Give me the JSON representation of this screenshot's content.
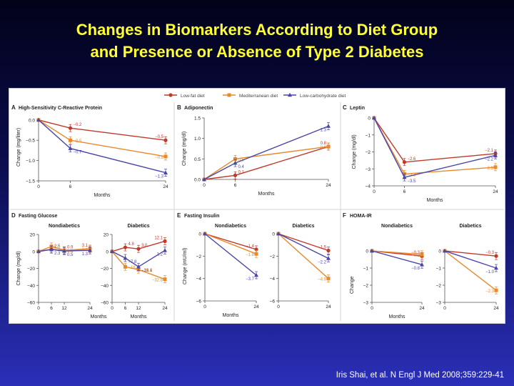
{
  "slide": {
    "title_line1": "Changes in Biomarkers According to Diet Group",
    "title_line2": "and Presence or Absence of Type 2 Diabetes",
    "citation": "Iris Shai,  et al. N Engl J Med 2008;359:229-41"
  },
  "colors": {
    "low_fat": "#c0392b",
    "mediterranean": "#e8892a",
    "low_carb": "#4a46a8"
  },
  "legend": [
    "Low-fat diet",
    "Mediterranean diet",
    "Low-carbohydrate diet"
  ],
  "chart_data": [
    {
      "panel": "A",
      "type": "line",
      "title": "High-Sensitivity C-Reactive Protein",
      "xlabel": "Months",
      "ylabel": "Change (mg/liter)",
      "x": [
        0,
        6,
        24
      ],
      "xticks": [
        0,
        6,
        24
      ],
      "xlim": [
        0,
        24
      ],
      "yticks": [
        0.0,
        -0.5,
        -1.0,
        -1.5
      ],
      "ytick_labels": [
        "0.0",
        "−0.5",
        "−1.0",
        "−1.5"
      ],
      "ylim": [
        -1.5,
        0.05
      ],
      "series": [
        {
          "name": "Low-fat diet",
          "values": [
            0,
            -0.2,
            -0.5
          ],
          "labels": [
            "",
            "−0.2",
            "−0.5"
          ]
        },
        {
          "name": "Mediterranean diet",
          "values": [
            0,
            -0.5,
            -0.9
          ],
          "labels": [
            "",
            "−0.5",
            "−0.9"
          ]
        },
        {
          "name": "Low-carbohydrate diet",
          "values": [
            0,
            -0.7,
            -1.3
          ],
          "labels": [
            "",
            "−0.7",
            "−1.3"
          ]
        }
      ]
    },
    {
      "panel": "B",
      "type": "line",
      "title": "Adiponectin",
      "xlabel": "Months",
      "ylabel": "Change (mg/dl)",
      "x": [
        0,
        6,
        24
      ],
      "xticks": [
        0,
        6,
        24
      ],
      "xlim": [
        0,
        24
      ],
      "yticks": [
        0.0,
        0.5,
        1.0,
        1.5
      ],
      "ytick_labels": [
        "0.0",
        "0.5",
        "1.0",
        "1.5"
      ],
      "ylim": [
        0,
        1.5
      ],
      "series": [
        {
          "name": "Low-fat diet",
          "values": [
            0,
            0.1,
            0.8
          ],
          "labels": [
            "",
            "0.1",
            "0.8"
          ]
        },
        {
          "name": "Mediterranean diet",
          "values": [
            0,
            0.5,
            0.8
          ],
          "labels": [
            "",
            "0.5",
            "0.8"
          ]
        },
        {
          "name": "Low-carbohydrate diet",
          "values": [
            0,
            0.4,
            1.3
          ],
          "labels": [
            "",
            "0.4",
            "1.3"
          ]
        }
      ]
    },
    {
      "panel": "C",
      "type": "line",
      "title": "Leptin",
      "xlabel": "Months",
      "ylabel": "Change (mg/dl)",
      "x": [
        0,
        6,
        24
      ],
      "xticks": [
        0,
        6,
        24
      ],
      "xlim": [
        0,
        24
      ],
      "yticks": [
        0,
        -1,
        -2,
        -3,
        -4
      ],
      "ytick_labels": [
        "0",
        "−1",
        "−2",
        "−3",
        "−4"
      ],
      "ylim": [
        -4,
        0
      ],
      "series": [
        {
          "name": "Low-fat diet",
          "values": [
            0,
            -2.6,
            -2.1
          ],
          "labels": [
            "",
            "−2.6",
            "−2.1"
          ]
        },
        {
          "name": "Mediterranean diet",
          "values": [
            0,
            -3.3,
            -2.9
          ],
          "labels": [
            "",
            "−3.3",
            "−2.9"
          ]
        },
        {
          "name": "Low-carbohydrate diet",
          "values": [
            0,
            -3.5,
            -2.2
          ],
          "labels": [
            "",
            "−3.5",
            "−2.2"
          ]
        }
      ]
    },
    {
      "panel": "D",
      "type": "line",
      "title": "Fasting Glucose",
      "subtitle": "Nondiabetics",
      "xlabel": "Months",
      "ylabel": "Change (mg/dl)",
      "x": [
        0,
        6,
        12,
        24
      ],
      "xticks": [
        0,
        6,
        12,
        24
      ],
      "xlim": [
        0,
        24
      ],
      "yticks": [
        20,
        0,
        -20,
        -40,
        -60
      ],
      "ytick_labels": [
        "20",
        "0",
        "−20",
        "−40",
        "−60"
      ],
      "ylim": [
        -60,
        20
      ],
      "series": [
        {
          "name": "Low-fat diet",
          "values": [
            0,
            2.5,
            0.9,
            3.1
          ],
          "labels": [
            "",
            "2.5",
            "0.9",
            "3.1"
          ]
        },
        {
          "name": "Mediterranean diet",
          "values": [
            0,
            5.8,
            1.4,
            3.1
          ],
          "labels": [
            "",
            "5.8",
            "1.4",
            "3.1"
          ]
        },
        {
          "name": "Low-carbohydrate diet",
          "values": [
            0,
            2.3,
            0.5,
            1.3
          ],
          "labels": [
            "",
            "2.3",
            "0.5",
            "1.3"
          ]
        }
      ]
    },
    {
      "panel": "D2",
      "type": "line",
      "title": "",
      "subtitle": "Diabetics",
      "xlabel": "Months",
      "ylabel": "",
      "x": [
        0,
        6,
        12,
        24
      ],
      "xticks": [
        0,
        6,
        12,
        24
      ],
      "xlim": [
        0,
        24
      ],
      "yticks": [
        20,
        0,
        -20,
        -40,
        -60
      ],
      "ytick_labels": [
        "20",
        "0",
        "−20",
        "−40",
        "−60"
      ],
      "ylim": [
        -60,
        20
      ],
      "series": [
        {
          "name": "Low-fat diet",
          "values": [
            0,
            4.8,
            3.0,
            12.1
          ],
          "labels": [
            "",
            "4.8",
            "3.0",
            "12.1"
          ]
        },
        {
          "name": "Mediterranean diet",
          "values": [
            0,
            -18.1,
            -21.4,
            -32.8
          ],
          "labels": [
            "",
            "−18.1",
            "−21.4",
            "−32.8"
          ]
        },
        {
          "name": "Low-carbohydrate diet",
          "values": [
            0,
            -7.8,
            -18.1,
            1.2
          ],
          "labels": [
            "",
            "−7.8",
            "−18.1",
            "1.2"
          ]
        }
      ]
    },
    {
      "panel": "E",
      "type": "line",
      "title": "Fasting Insulin",
      "subtitle": "Nondiabetics",
      "xlabel": "Months",
      "ylabel": "Change (mU/ml)",
      "x": [
        0,
        24
      ],
      "xticks": [
        0,
        24
      ],
      "xlim": [
        0,
        24
      ],
      "yticks": [
        0,
        -2,
        -4,
        -6
      ],
      "ytick_labels": [
        "0",
        "−2",
        "−4",
        "−6"
      ],
      "ylim": [
        -6,
        0
      ],
      "series": [
        {
          "name": "Low-fat diet",
          "values": [
            0,
            -1.4
          ],
          "labels": [
            "",
            "−1.4"
          ]
        },
        {
          "name": "Mediterranean diet",
          "values": [
            0,
            -1.8
          ],
          "labels": [
            "",
            "−1.8"
          ]
        },
        {
          "name": "Low-carbohydrate diet",
          "values": [
            0,
            -3.7
          ],
          "labels": [
            "",
            "−3.7"
          ]
        }
      ]
    },
    {
      "panel": "E2",
      "type": "line",
      "title": "",
      "subtitle": "Diabetics",
      "xlabel": "",
      "ylabel": "",
      "x": [
        0,
        24
      ],
      "xticks": [
        0,
        24
      ],
      "xlim": [
        0,
        24
      ],
      "yticks": [
        0,
        -2,
        -4,
        -6
      ],
      "ytick_labels": [
        "0",
        "−2",
        "−4",
        "−6"
      ],
      "ylim": [
        -6,
        0
      ],
      "series": [
        {
          "name": "Low-fat diet",
          "values": [
            0,
            -1.5
          ],
          "labels": [
            "",
            "−1.5"
          ]
        },
        {
          "name": "Mediterranean diet",
          "values": [
            0,
            -4.0
          ],
          "labels": [
            "",
            "−4.0"
          ]
        },
        {
          "name": "Low-carbohydrate diet",
          "values": [
            0,
            -2.2
          ],
          "labels": [
            "",
            "−2.2"
          ]
        }
      ]
    },
    {
      "panel": "F",
      "type": "line",
      "title": "HOMA-IR",
      "subtitle": "Nondiabetics",
      "xlabel": "Months",
      "ylabel": "Change",
      "x": [
        0,
        24
      ],
      "xticks": [
        0,
        24
      ],
      "xlim": [
        0,
        24
      ],
      "yticks": [
        0,
        -1,
        -2,
        -3
      ],
      "ytick_labels": [
        "0",
        "−1",
        "−2",
        "−3"
      ],
      "ylim": [
        -3,
        0
      ],
      "series": [
        {
          "name": "Low-fat diet",
          "values": [
            0,
            -0.3
          ],
          "labels": [
            "",
            "−0.3"
          ]
        },
        {
          "name": "Mediterranean diet",
          "values": [
            0,
            -0.2
          ],
          "labels": [
            "",
            "−0.2"
          ]
        },
        {
          "name": "Low-carbohydrate diet",
          "values": [
            0,
            -0.8
          ],
          "labels": [
            "",
            "−0.8"
          ]
        }
      ]
    },
    {
      "panel": "F2",
      "type": "line",
      "title": "",
      "subtitle": "Diabetics",
      "xlabel": "",
      "ylabel": "",
      "x": [
        0,
        24
      ],
      "xticks": [
        0,
        24
      ],
      "xlim": [
        0,
        24
      ],
      "yticks": [
        0,
        -1,
        -2,
        -3
      ],
      "ytick_labels": [
        "0",
        "−1",
        "−2",
        "−3"
      ],
      "ylim": [
        -3,
        0
      ],
      "series": [
        {
          "name": "Low-fat diet",
          "values": [
            0,
            -0.3
          ],
          "labels": [
            "",
            "−0.3"
          ]
        },
        {
          "name": "Mediterranean diet",
          "values": [
            0,
            -2.3
          ],
          "labels": [
            "",
            "−2.3"
          ]
        },
        {
          "name": "Low-carbohydrate diet",
          "values": [
            0,
            -1.0
          ],
          "labels": [
            "",
            "−1.0"
          ]
        }
      ]
    }
  ]
}
